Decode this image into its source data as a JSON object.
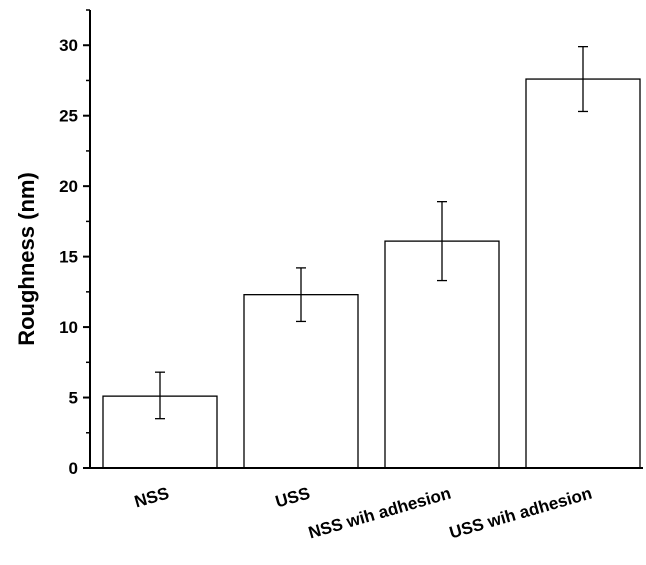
{
  "chart_data": {
    "type": "bar",
    "title": "",
    "xlabel": "",
    "ylabel": "Roughness (nm)",
    "categories": [
      "NSS",
      "USS",
      "NSS wih adhesion",
      "USS wih adhesion"
    ],
    "values": [
      5.1,
      12.3,
      16.1,
      27.6
    ],
    "error_low": [
      3.5,
      10.4,
      13.3,
      25.3
    ],
    "error_high": [
      6.8,
      14.2,
      18.9,
      29.9
    ],
    "ylim": [
      0,
      32.5
    ],
    "yticks": [
      0,
      5,
      10,
      15,
      20,
      25,
      30
    ],
    "yticks_minor": [
      2.5,
      7.5,
      12.5,
      17.5,
      22.5,
      27.5,
      32.5
    ],
    "grid": false,
    "legend": "none",
    "bar_fill": "#ffffff",
    "bar_stroke": "#000000"
  }
}
